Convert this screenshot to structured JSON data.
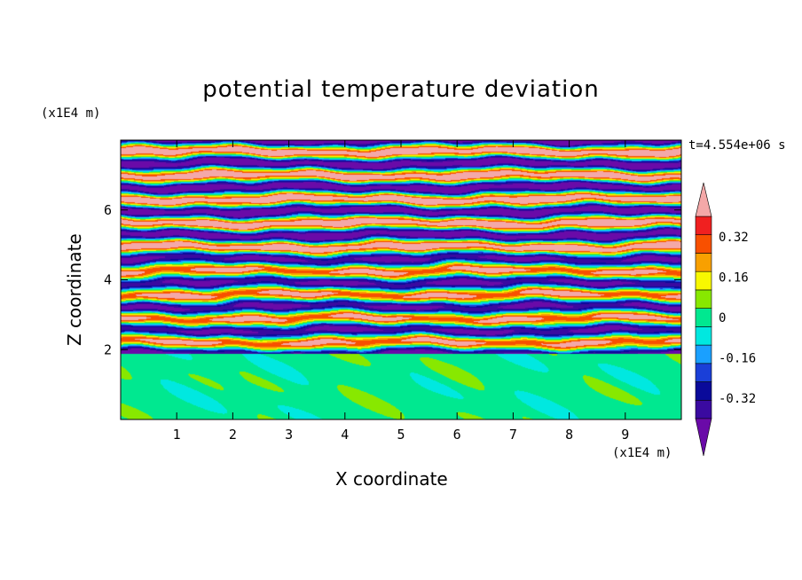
{
  "chart_data": {
    "type": "heatmap",
    "title": "potential temperature deviation",
    "xlabel": "X coordinate",
    "ylabel": "Z coordinate",
    "x_unit": "(x1E4 m)",
    "y_unit": "(x1E4 m)",
    "time_label": "t=4.554e+06 s",
    "xlim": [
      0,
      10
    ],
    "ylim": [
      0,
      8
    ],
    "x_ticks": [
      "1",
      "2",
      "3",
      "4",
      "5",
      "6",
      "7",
      "8",
      "9"
    ],
    "y_ticks": [
      "2",
      "4",
      "6"
    ],
    "colorbar": {
      "levels": [
        -0.4,
        -0.32,
        -0.24,
        -0.16,
        -0.08,
        0,
        0.08,
        0.16,
        0.24,
        0.32,
        0.4
      ],
      "colors": [
        "#3a0aa0",
        "#0a0a9a",
        "#1a3fd8",
        "#1aa0ff",
        "#00e8e0",
        "#00e890",
        "#88e800",
        "#f8f800",
        "#f8a000",
        "#f85000",
        "#f02020"
      ],
      "under_color": "#6a0aa8",
      "over_color": "#f4a8a8",
      "tick_labels": [
        "0.32",
        "0.16",
        "0",
        "-0.16",
        "-0.32"
      ],
      "tick_values": [
        0.32,
        0.16,
        0,
        -0.16,
        -0.32
      ]
    },
    "field_description_bands": [
      {
        "z_range": [
          0,
          1.9
        ],
        "dominant_values": [
          0.0,
          0.08
        ]
      },
      {
        "z_range": [
          1.9,
          4.8
        ],
        "dominant_values": [
          -0.4,
          0.4
        ]
      },
      {
        "z_range": [
          4.8,
          8.0
        ],
        "dominant_values": [
          -0.45,
          0.45
        ]
      }
    ]
  }
}
